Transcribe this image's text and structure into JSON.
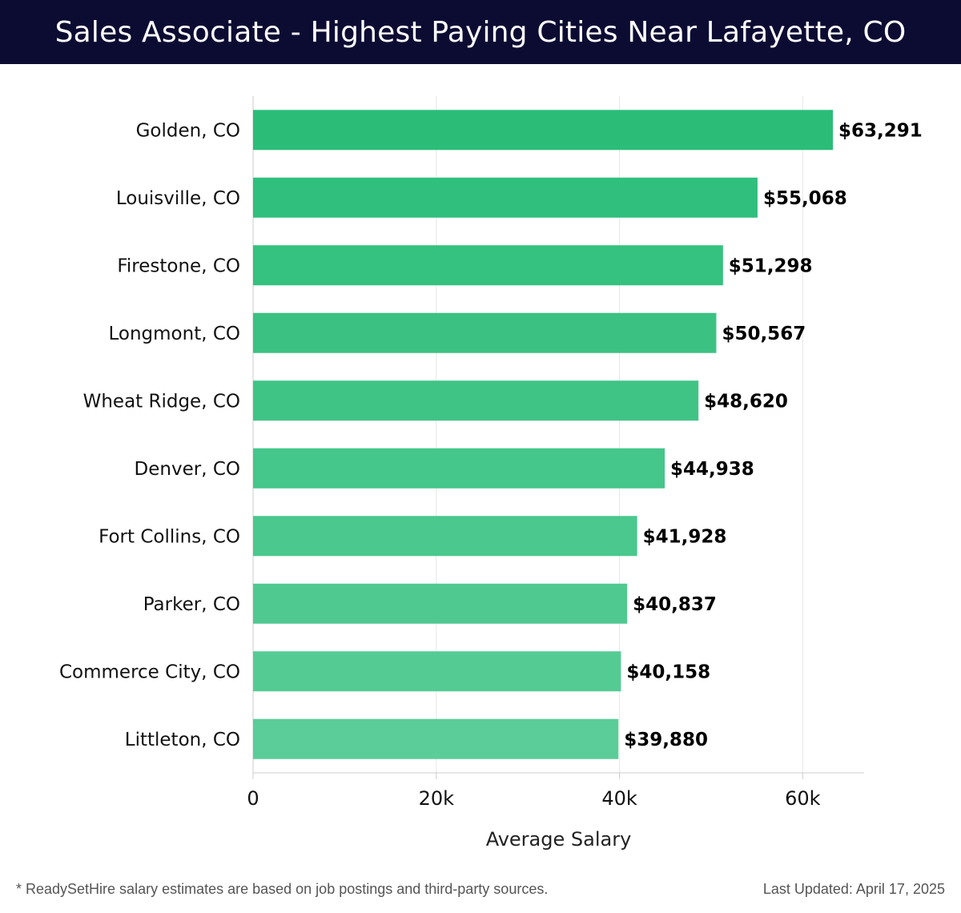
{
  "header": {
    "title": "Sales Associate - Highest Paying Cities Near Lafayette, CO"
  },
  "chart_data": {
    "type": "bar",
    "orientation": "horizontal",
    "categories": [
      "Golden, CO",
      "Louisville, CO",
      "Firestone, CO",
      "Longmont, CO",
      "Wheat Ridge, CO",
      "Denver, CO",
      "Fort Collins, CO",
      "Parker, CO",
      "Commerce City, CO",
      "Littleton, CO"
    ],
    "values": [
      63291,
      55068,
      51298,
      50567,
      48620,
      44938,
      41928,
      40837,
      40158,
      39880
    ],
    "value_labels": [
      "$63,291",
      "$55,068",
      "$51,298",
      "$50,567",
      "$48,620",
      "$44,938",
      "$41,928",
      "$40,837",
      "$40,158",
      "$39,880"
    ],
    "xlabel": "Average Salary",
    "ylabel": "",
    "xlim": [
      0,
      66700
    ],
    "xticks": [
      0,
      20000,
      40000,
      60000
    ],
    "xtick_labels": [
      "0",
      "20k",
      "40k",
      "60k"
    ],
    "grid": "vertical",
    "colors": {
      "bar_top": "#2bbd78",
      "bar_bottom": "#5acd98",
      "grid": "#e6e6e6",
      "axis": "#cccccc"
    }
  },
  "footer": {
    "note": "* ReadySetHire salary estimates are based on job postings and third-party sources.",
    "updated": "Last Updated: April 17, 2025"
  }
}
